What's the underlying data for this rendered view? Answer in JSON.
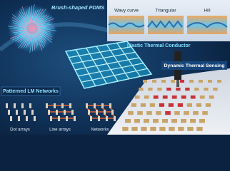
{
  "header": {
    "title": "Brush-shaped PDMS"
  },
  "insets": {
    "labels": [
      "Wavy curve",
      "Triangular",
      "Hill"
    ],
    "caption": "Elastic Thermal Conductor"
  },
  "sensing": {
    "label": "Dynamic Thermal Sensing"
  },
  "networks": {
    "title": "Patterned LM Networks",
    "labels": [
      "Dot arrays",
      "Line arrays",
      "Networks"
    ]
  }
}
